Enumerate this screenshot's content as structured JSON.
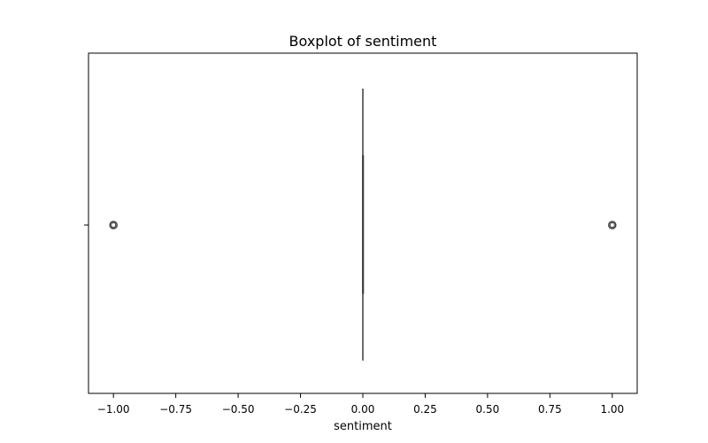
{
  "chart_data": {
    "type": "boxplot",
    "title": "Boxplot of sentiment",
    "xlabel": "sentiment",
    "ylabel": "",
    "xlim": [
      -1.1,
      1.1
    ],
    "xticks": [
      -1.0,
      -0.75,
      -0.5,
      -0.25,
      0.0,
      0.25,
      0.5,
      0.75,
      1.0
    ],
    "xtick_labels": [
      "−1.00",
      "−0.75",
      "−0.50",
      "−0.25",
      "0.00",
      "0.25",
      "0.50",
      "0.75",
      "1.00"
    ],
    "orientation": "horizontal",
    "box": {
      "whisker_low": 0.0,
      "q1": 0.0,
      "median": 0.0,
      "q3": 0.0,
      "whisker_high": 0.0
    },
    "outliers": [
      -1.0,
      1.0
    ],
    "grid": false,
    "colors": {
      "line": "#3d3d3d",
      "axes": "#000000"
    }
  }
}
